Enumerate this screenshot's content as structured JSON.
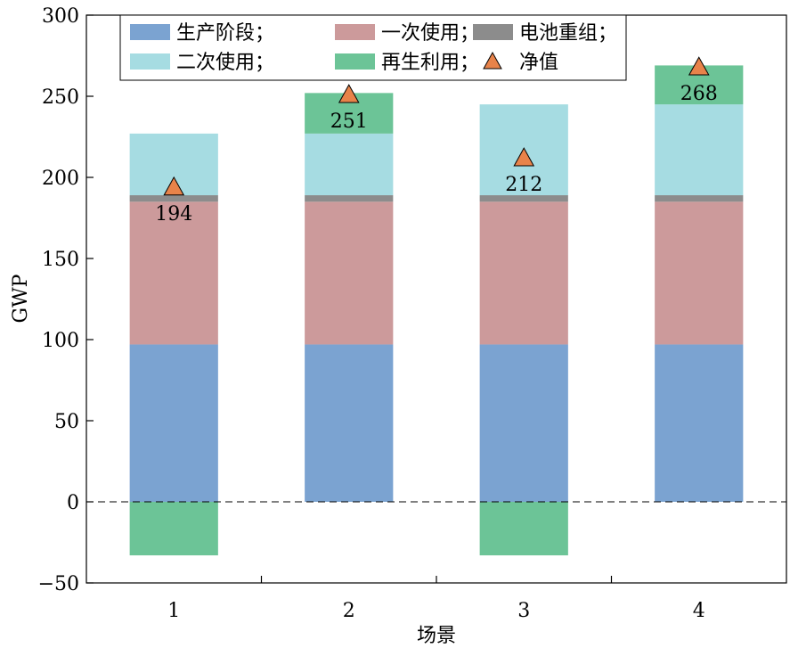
{
  "chart_data": {
    "type": "bar",
    "stacked": true,
    "categories": [
      "1",
      "2",
      "3",
      "4"
    ],
    "xlabel": "场景",
    "ylabel": "GWP",
    "ylim": [
      -50,
      300
    ],
    "yticks": [
      -50,
      0,
      50,
      100,
      150,
      200,
      250,
      300
    ],
    "zero_line": "dashed",
    "legend_position": "top-left",
    "series": [
      {
        "name": "生产阶段；",
        "color": "#7ba3d1",
        "values": [
          97,
          97,
          97,
          97
        ]
      },
      {
        "name": "一次使用；",
        "color": "#cc9a9b",
        "values": [
          88,
          88,
          88,
          88
        ]
      },
      {
        "name": "电池重组；",
        "color": "#8c8c8c",
        "values": [
          4,
          4,
          4,
          4
        ]
      },
      {
        "name": "二次使用；",
        "color": "#a6dce2",
        "values": [
          38,
          38,
          56,
          56
        ]
      },
      {
        "name": "再生利用；",
        "color": "#6cc497",
        "values": [
          -33,
          25,
          -33,
          24
        ]
      }
    ],
    "net": {
      "name": "净值",
      "color": "#e8834a",
      "values": [
        194,
        251,
        212,
        268
      ],
      "labels": [
        "194",
        "251",
        "212",
        "268"
      ]
    }
  }
}
